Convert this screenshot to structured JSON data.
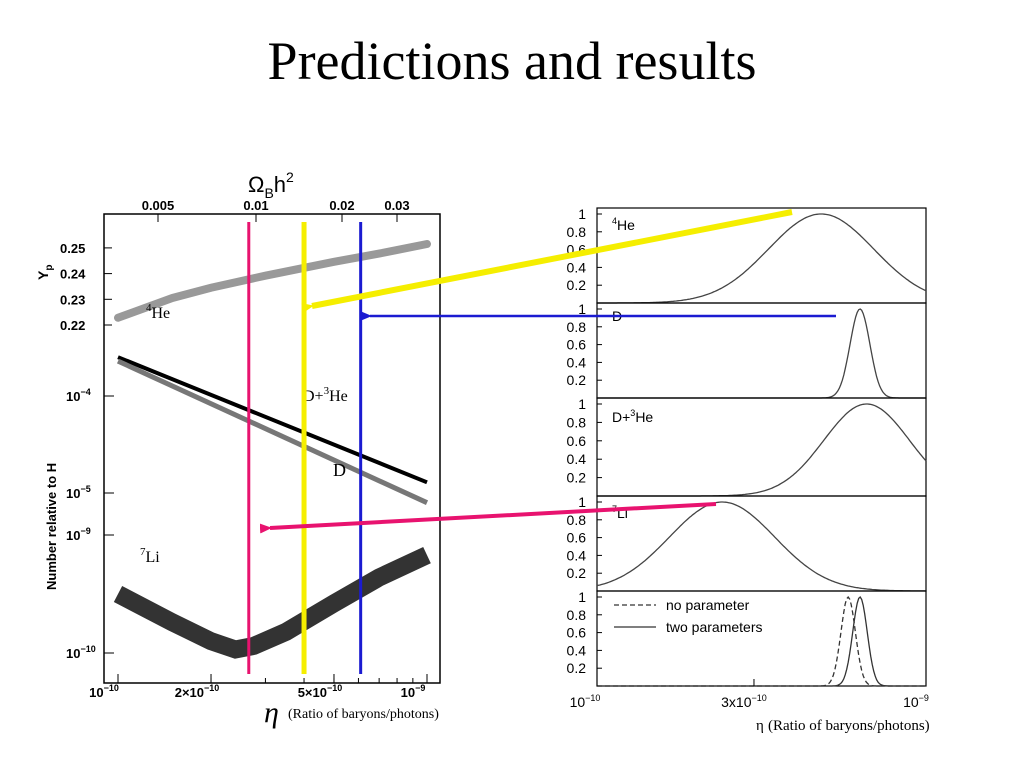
{
  "slide": {
    "title": "Predictions and results"
  },
  "chart_data": [
    {
      "type": "line",
      "panel": "left",
      "top_axis": {
        "label_main": "Ω",
        "label_sub": "B",
        "label_tail": "h",
        "label_sup": "2",
        "ticks": [
          "0.005",
          "0.01",
          "0.02",
          "0.03"
        ]
      },
      "bottom_axis": {
        "ticks": [
          "10",
          "2×10",
          "5×10",
          "10"
        ],
        "exponents": [
          "−10",
          "−10",
          "−10",
          "−9"
        ],
        "eta_symbol": "η",
        "label": "(Ratio of baryons/photons)"
      },
      "yp_axis": {
        "label": "Y",
        "label_sub": "p",
        "ticks": [
          "0.25",
          "0.24",
          "0.23",
          "0.22"
        ]
      },
      "abundance_axis": {
        "label": "Number relative to H",
        "ticks": [
          {
            "base": "10",
            "exp": "−4"
          },
          {
            "base": "10",
            "exp": "−5"
          },
          {
            "base": "10",
            "exp": "−9"
          },
          {
            "base": "10",
            "exp": "−10"
          }
        ]
      },
      "curve_labels": {
        "he4": {
          "sup": "4",
          "text": "He"
        },
        "dhe3": {
          "text_a": "D+",
          "sup": "3",
          "text_b": "He"
        },
        "d": {
          "text": "D"
        },
        "li7": {
          "sup": "7",
          "text": "Li"
        }
      },
      "markers": [
        {
          "color": "#e8136f",
          "eta": 2.65e-10
        },
        {
          "color": "#f5ee00",
          "eta": 4e-10
        },
        {
          "color": "#1b1bd1",
          "eta": 6.1e-10
        }
      ],
      "series": [
        {
          "key": "He4",
          "color": "#999999",
          "points": [
            [
              1e-10,
              0.2228
            ],
            [
              1.5e-10,
              0.2305
            ],
            [
              2e-10,
              0.2345
            ],
            [
              3e-10,
              0.2392
            ],
            [
              5e-10,
              0.2446
            ],
            [
              7e-10,
              0.2478
            ],
            [
              1e-09,
              0.2515
            ]
          ]
        },
        {
          "key": "D+He3",
          "color": "#000000",
          "log10": [
            [
              1e-10,
              -3.6
            ],
            [
              1e-09,
              -4.89
            ]
          ]
        },
        {
          "key": "D",
          "color": "#777777",
          "log10": [
            [
              1e-10,
              -3.64
            ],
            [
              1e-09,
              -5.1
            ]
          ]
        },
        {
          "key": "Li7",
          "color": "#333333",
          "log10": [
            [
              1e-10,
              -9.5
            ],
            [
              1.5e-10,
              -9.74
            ],
            [
              2e-10,
              -9.9
            ],
            [
              2.4e-10,
              -9.97
            ],
            [
              2.75e-10,
              -9.94
            ],
            [
              3.5e-10,
              -9.82
            ],
            [
              5e-10,
              -9.58
            ],
            [
              7e-10,
              -9.36
            ],
            [
              1e-09,
              -9.17
            ]
          ]
        }
      ]
    },
    {
      "type": "line",
      "panel": "right",
      "x_axis": {
        "ticks": [
          "10",
          "3x10",
          "10"
        ],
        "exponents": [
          "−10",
          "−10",
          "−9"
        ],
        "eta_symbol": "η",
        "label": "(Ratio of baryons/photons)"
      },
      "y_ticks": [
        "1",
        "0.8",
        "0.6",
        "0.4",
        "0.2"
      ],
      "subplots": [
        {
          "label_sup": "4",
          "label": "He",
          "peak_eta": 4.8e-10,
          "width": 0.16
        },
        {
          "label": "D",
          "peak_eta": 6.3e-10,
          "width": 0.03
        },
        {
          "label_a": "D+",
          "label_sup": "3",
          "label_b": "He",
          "peak_eta": 6.6e-10,
          "width": 0.13
        },
        {
          "label_sup": "7",
          "label": "Li",
          "peak_eta": 2.4e-10,
          "width": 0.16
        },
        {
          "legend": [
            {
              "name": "no parameter",
              "style": "dashed"
            },
            {
              "name": "two parameters",
              "style": "solid"
            }
          ],
          "peaks": [
            {
              "style": "dashed",
              "peak_eta": 5.8e-10
            },
            {
              "style": "solid",
              "peak_eta": 6.3e-10
            }
          ]
        }
      ]
    }
  ],
  "arrows": [
    {
      "color": "#f5ee00",
      "from_panel": "right-He4",
      "to_panel": "left-yellow"
    },
    {
      "color": "#1b1bd1",
      "from_panel": "right-D",
      "to_panel": "left-blue"
    },
    {
      "color": "#e8136f",
      "from_panel": "right-Li7",
      "to_panel": "left-magenta"
    }
  ]
}
